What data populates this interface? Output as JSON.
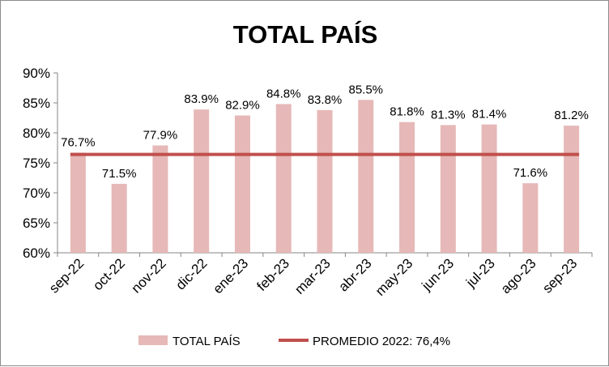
{
  "chart_data": {
    "type": "bar",
    "title": "TOTAL PAÍS",
    "categories": [
      "sep-22",
      "oct-22",
      "nov-22",
      "dic-22",
      "ene-23",
      "feb-23",
      "mar-23",
      "abr-23",
      "may-23",
      "jun-23",
      "jul-23",
      "ago-23",
      "sep-23"
    ],
    "series": [
      {
        "name": "TOTAL PAÍS",
        "type": "bar",
        "color": "#e6b8b7",
        "values": [
          76.7,
          71.5,
          77.9,
          83.9,
          82.9,
          84.8,
          83.8,
          85.5,
          81.8,
          81.3,
          81.4,
          71.6,
          81.2
        ],
        "data_labels": [
          "76.7%",
          "71.5%",
          "77.9%",
          "83.9%",
          "82.9%",
          "84.8%",
          "83.8%",
          "85.5%",
          "81.8%",
          "81.3%",
          "81.4%",
          "71.6%",
          "81.2%"
        ]
      },
      {
        "name": "PROMEDIO 2022: 76,4%",
        "type": "line",
        "color": "#c0504d",
        "value": 76.4
      }
    ],
    "ylim": [
      60,
      90
    ],
    "y_ticks": [
      60,
      65,
      70,
      75,
      80,
      85,
      90
    ],
    "y_tick_labels": [
      "60%",
      "65%",
      "70%",
      "75%",
      "80%",
      "85%",
      "90%"
    ],
    "grid": false,
    "legend_position": "bottom"
  }
}
